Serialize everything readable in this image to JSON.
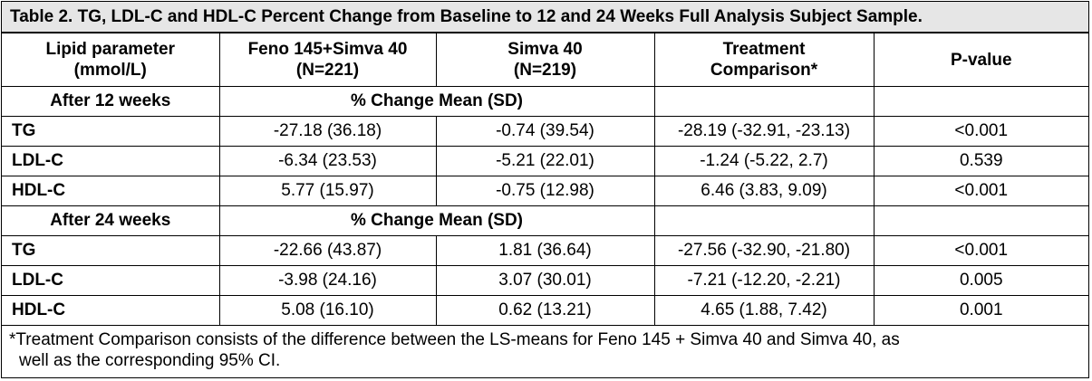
{
  "title": "Table 2. TG, LDL-C and HDL-C Percent Change from Baseline to 12 and 24 Weeks Full Analysis Subject Sample.",
  "headers": [
    [
      "Lipid parameter",
      "(mmol/L)"
    ],
    [
      "Feno 145+Simva 40",
      "(N=221)"
    ],
    [
      "Simva 40",
      "(N=219)"
    ],
    [
      "Treatment",
      "Comparison*"
    ],
    [
      "P-value",
      ""
    ]
  ],
  "sections": [
    {
      "label": "After 12 weeks",
      "subheader": "% Change Mean (SD)",
      "rows": [
        {
          "param": "TG",
          "feno": "-27.18 (36.18)",
          "simva": "-0.74 (39.54)",
          "comparison": "-28.19 (-32.91, -23.13)",
          "p": "<0.001"
        },
        {
          "param": "LDL-C",
          "feno": "-6.34 (23.53)",
          "simva": "-5.21 (22.01)",
          "comparison": "-1.24 (-5.22, 2.7)",
          "p": "0.539"
        },
        {
          "param": "HDL-C",
          "feno": "5.77 (15.97)",
          "simva": "-0.75 (12.98)",
          "comparison": "6.46 (3.83, 9.09)",
          "p": "<0.001"
        }
      ]
    },
    {
      "label": "After 24 weeks",
      "subheader": "% Change Mean (SD)",
      "rows": [
        {
          "param": "TG",
          "feno": "-22.66 (43.87)",
          "simva": "1.81 (36.64)",
          "comparison": "-27.56 (-32.90, -21.80)",
          "p": "<0.001"
        },
        {
          "param": "LDL-C",
          "feno": "-3.98 (24.16)",
          "simva": "3.07 (30.01)",
          "comparison": "-7.21 (-12.20, -2.21)",
          "p": "0.005"
        },
        {
          "param": "HDL-C",
          "feno": "5.08 (16.10)",
          "simva": "0.62 (13.21)",
          "comparison": "4.65 (1.88, 7.42)",
          "p": "0.001"
        }
      ]
    }
  ],
  "footnote": [
    "*Treatment Comparison consists of the difference between the LS-means for Feno 145 + Simva 40 and Simva 40, as",
    "well as the corresponding 95% CI."
  ],
  "colors": {
    "title_background": "#e6e6e6",
    "border": "#000000",
    "text": "#000000"
  }
}
